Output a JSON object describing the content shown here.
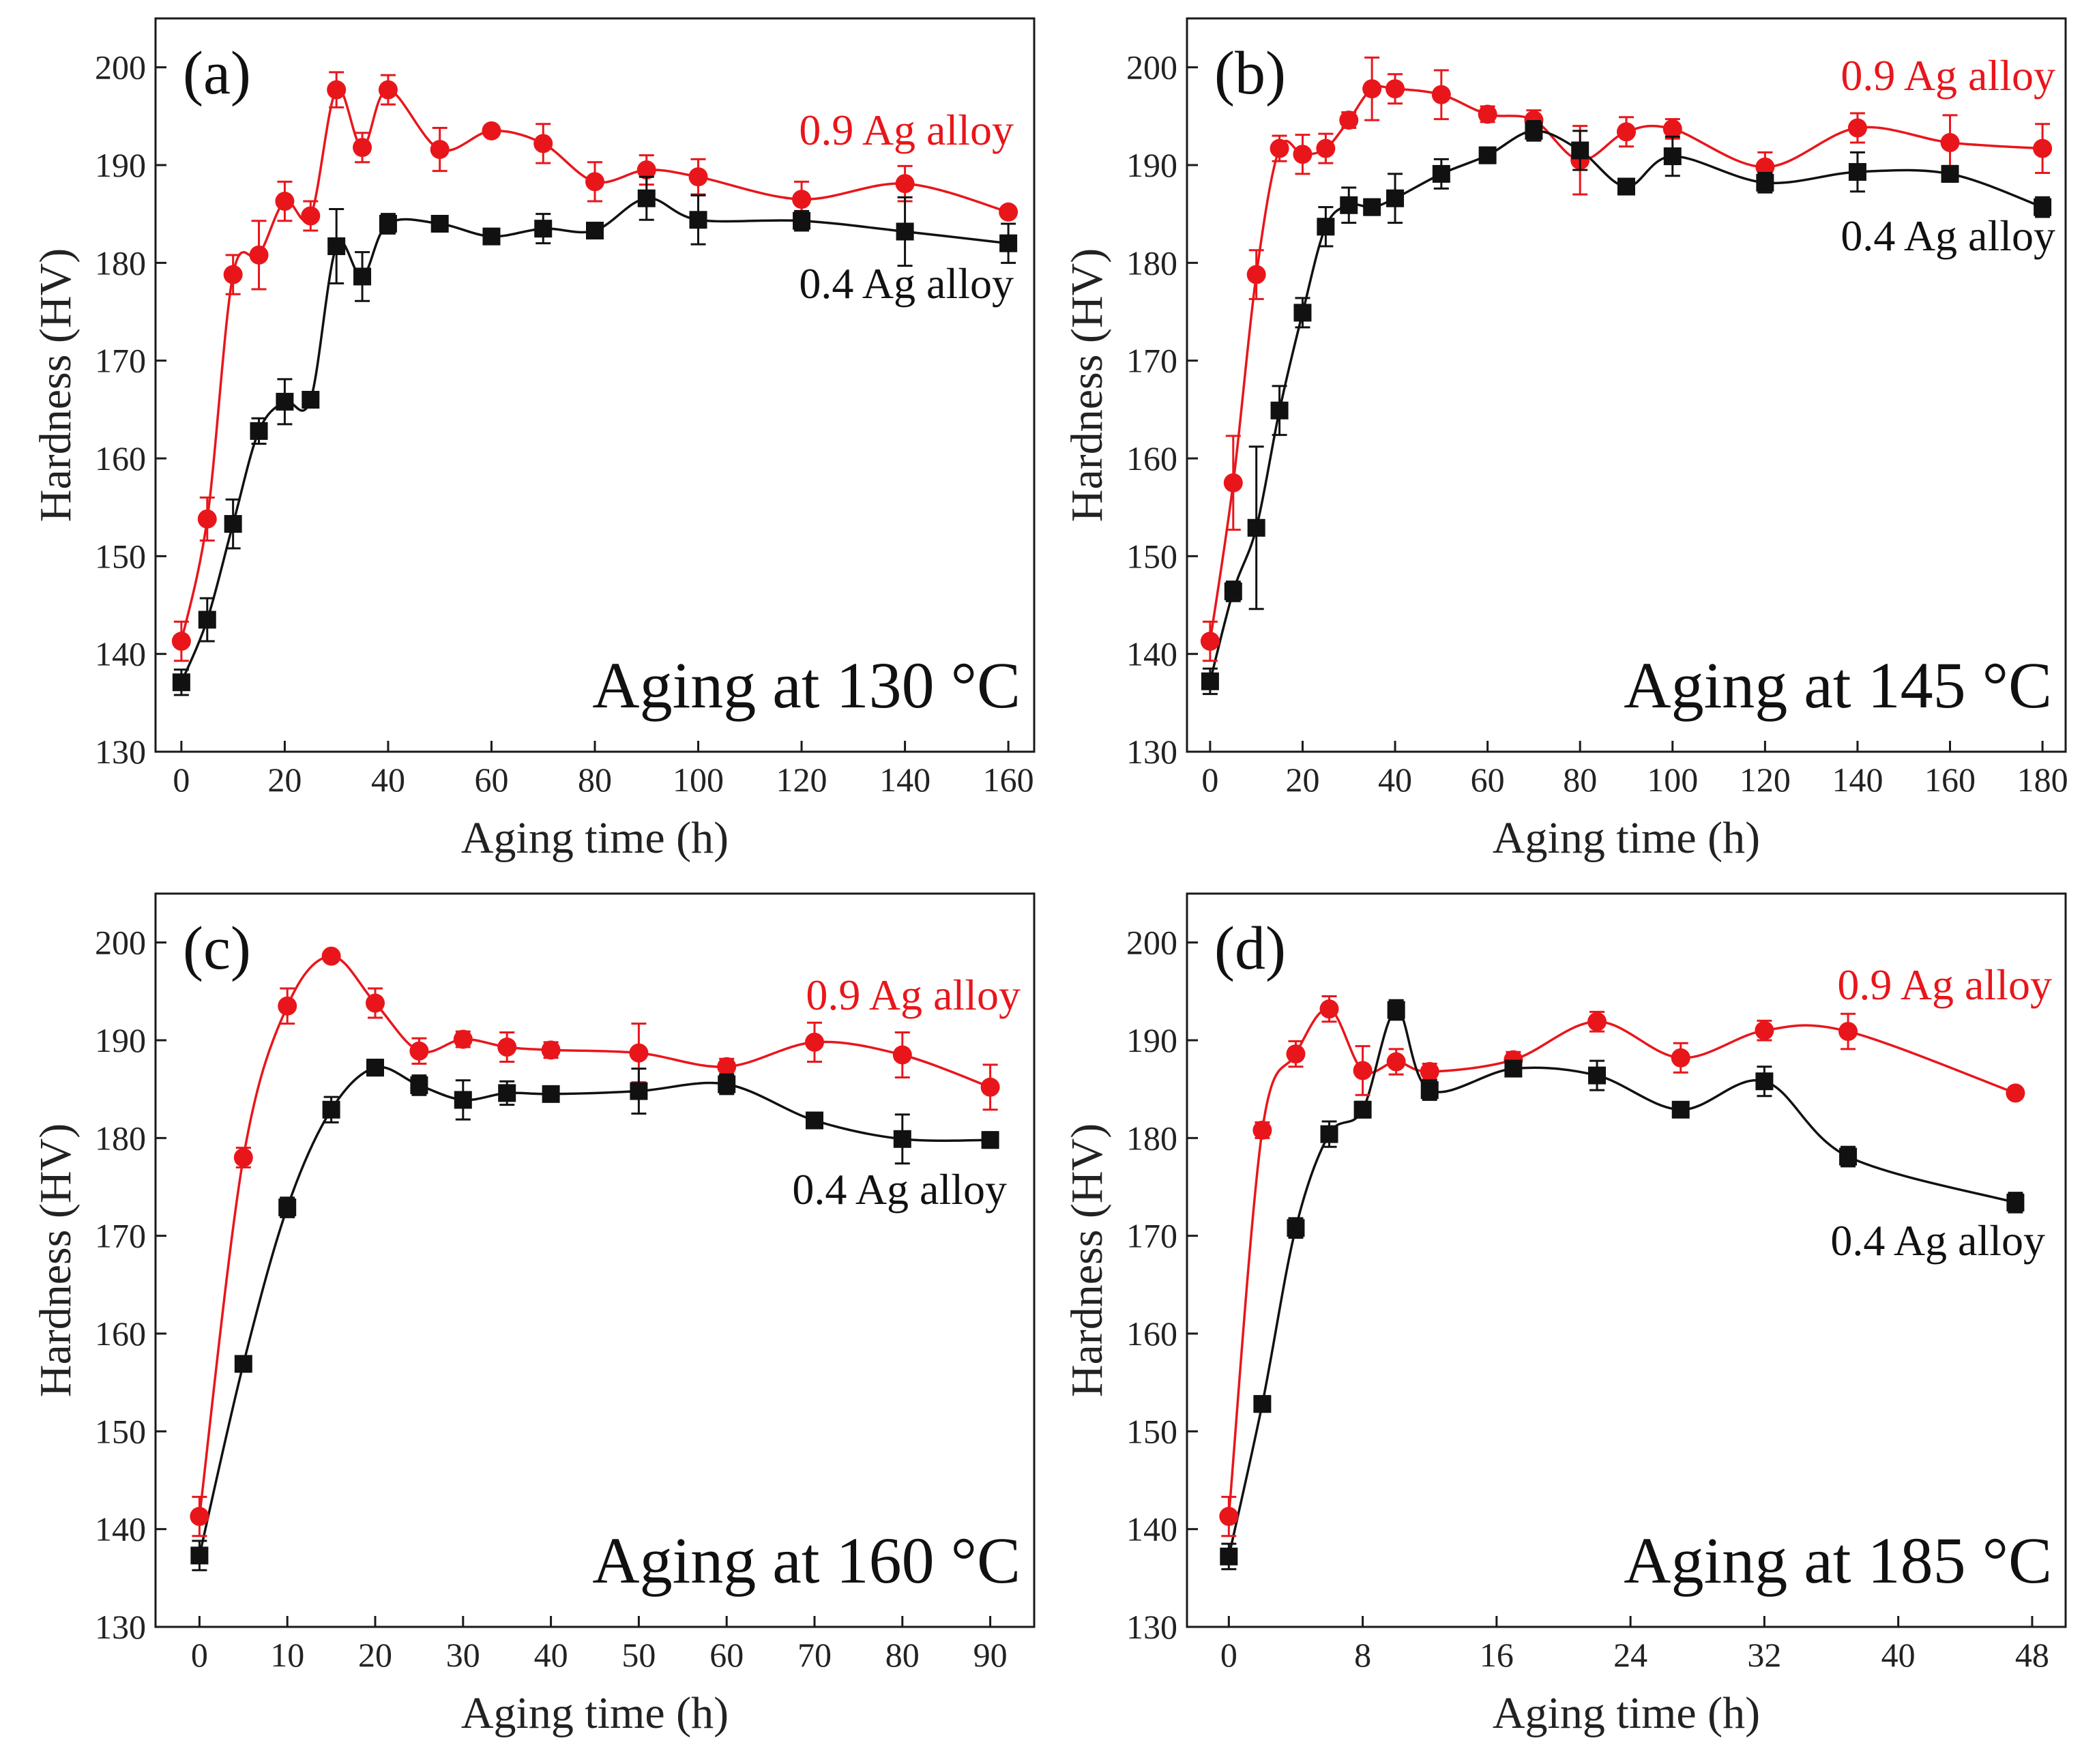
{
  "chart_data": [
    {
      "type": "line",
      "panel_label": "(a)",
      "condition": "Aging at 130 °C",
      "xlabel": "Aging time (h)",
      "ylabel": "Hardness (HV)",
      "xlim": [
        -5,
        165
      ],
      "ylim": [
        130,
        205
      ],
      "xticks": [
        0,
        20,
        40,
        60,
        80,
        100,
        120,
        140,
        160
      ],
      "yticks": [
        130,
        140,
        150,
        160,
        170,
        180,
        190,
        200
      ],
      "series": [
        {
          "name": "0.9 Ag alloy",
          "color": "#e8161b",
          "marker": "circle",
          "x": [
            0,
            5,
            10,
            15,
            20,
            25,
            30,
            35,
            40,
            50,
            60,
            70,
            80,
            90,
            100,
            120,
            140,
            160
          ],
          "y": [
            141.3,
            153.8,
            178.8,
            180.8,
            186.3,
            184.8,
            197.7,
            191.8,
            197.7,
            191.6,
            193.5,
            192.2,
            188.3,
            189.5,
            188.8,
            186.5,
            188.1,
            185.2
          ],
          "err": [
            2.0,
            2.2,
            2.0,
            3.5,
            2.0,
            1.5,
            1.8,
            1.5,
            1.5,
            2.2,
            0.5,
            2.0,
            2.0,
            1.5,
            1.8,
            1.8,
            1.8,
            0.5
          ]
        },
        {
          "name": "0.4 Ag alloy",
          "color": "#111111",
          "marker": "square",
          "x": [
            0,
            5,
            10,
            15,
            20,
            25,
            30,
            35,
            40,
            50,
            60,
            70,
            80,
            90,
            100,
            120,
            140,
            160
          ],
          "y": [
            137.1,
            143.5,
            153.3,
            162.8,
            165.8,
            166.0,
            181.7,
            178.6,
            184.0,
            184.0,
            182.7,
            183.5,
            183.3,
            186.6,
            184.4,
            184.3,
            183.2,
            182.0
          ],
          "err": [
            1.3,
            2.2,
            2.5,
            1.3,
            2.3,
            0.8,
            3.8,
            2.5,
            1.0,
            0.5,
            0.5,
            1.5,
            0.5,
            2.2,
            2.5,
            1.0,
            3.5,
            2.0
          ]
        }
      ],
      "series_label_layout": [
        {
          "x": 1.6,
          "y": 0.17,
          "anchor": "end"
        },
        {
          "x": 1.6,
          "y": 0.4,
          "anchor": "end"
        }
      ]
    },
    {
      "type": "line",
      "panel_label": "(b)",
      "condition": "Aging at 145 °C",
      "xlabel": "Aging time (h)",
      "ylabel": "Hardness (HV)",
      "xlim": [
        -5,
        185
      ],
      "ylim": [
        130,
        205
      ],
      "xticks": [
        0,
        20,
        40,
        60,
        80,
        100,
        120,
        140,
        160,
        180
      ],
      "yticks": [
        130,
        140,
        150,
        160,
        170,
        180,
        190,
        200
      ],
      "series": [
        {
          "name": "0.9 Ag alloy",
          "color": "#e8161b",
          "marker": "circle",
          "x": [
            0,
            5,
            10,
            15,
            20,
            25,
            30,
            35,
            40,
            50,
            60,
            70,
            80,
            90,
            100,
            120,
            140,
            160,
            180
          ],
          "y": [
            141.3,
            157.5,
            178.8,
            191.7,
            191.1,
            191.7,
            194.6,
            197.8,
            197.8,
            197.2,
            195.2,
            194.6,
            190.5,
            193.4,
            193.7,
            189.8,
            193.8,
            192.3,
            191.7
          ],
          "err": [
            2.0,
            4.8,
            2.5,
            1.3,
            2.0,
            1.5,
            0.8,
            3.2,
            1.5,
            2.5,
            0.8,
            1.0,
            3.5,
            1.5,
            1.0,
            1.5,
            1.5,
            2.8,
            2.5
          ]
        },
        {
          "name": "0.4 Ag alloy",
          "color": "#111111",
          "marker": "square",
          "x": [
            0,
            5,
            10,
            15,
            20,
            25,
            30,
            35,
            40,
            50,
            60,
            70,
            80,
            90,
            100,
            120,
            140,
            160,
            180
          ],
          "y": [
            137.2,
            146.4,
            152.9,
            164.9,
            174.9,
            183.7,
            185.9,
            185.7,
            186.6,
            189.1,
            191.0,
            193.5,
            191.5,
            187.8,
            190.9,
            188.2,
            189.3,
            189.1,
            185.7
          ],
          "err": [
            1.3,
            1.0,
            8.3,
            2.5,
            1.5,
            2.0,
            1.8,
            0.8,
            2.5,
            1.5,
            0.8,
            1.0,
            2.0,
            0.8,
            2.0,
            1.0,
            2.0,
            0.8,
            1.0
          ]
        }
      ],
      "series_label_layout": [
        {
          "x": 1.6,
          "y": 0.17,
          "anchor": "end"
        },
        {
          "x": 1.6,
          "y": 0.4,
          "anchor": "end"
        }
      ]
    },
    {
      "type": "line",
      "panel_label": "(c)",
      "condition": "Aging at 160 °C",
      "xlabel": "Aging time (h)",
      "ylabel": "Hardness (HV)",
      "xlim": [
        -5,
        95
      ],
      "ylim": [
        130,
        205
      ],
      "xticks": [
        0,
        10,
        20,
        30,
        40,
        50,
        60,
        70,
        80,
        90
      ],
      "yticks": [
        130,
        140,
        150,
        160,
        170,
        180,
        190,
        200
      ],
      "series": [
        {
          "name": "0.9 Ag alloy",
          "color": "#e8161b",
          "marker": "circle",
          "x": [
            0,
            5,
            10,
            15,
            20,
            25,
            30,
            35,
            40,
            50,
            60,
            70,
            80,
            90
          ],
          "y": [
            141.3,
            178.0,
            193.5,
            198.6,
            193.8,
            188.9,
            190.1,
            189.3,
            189.0,
            188.7,
            187.3,
            189.8,
            188.5,
            185.2
          ],
          "err": [
            2.0,
            1.0,
            1.8,
            0.5,
            1.5,
            1.3,
            0.8,
            1.5,
            0.8,
            3.0,
            0.8,
            2.0,
            2.3,
            2.3
          ]
        },
        {
          "name": "0.4 Ag alloy",
          "color": "#111111",
          "marker": "square",
          "x": [
            0,
            5,
            10,
            15,
            20,
            25,
            30,
            35,
            40,
            50,
            60,
            70,
            80,
            90
          ],
          "y": [
            137.3,
            156.9,
            172.9,
            182.9,
            187.2,
            185.4,
            183.9,
            184.6,
            184.5,
            184.8,
            185.5,
            181.8,
            179.9,
            179.8
          ],
          "err": [
            1.5,
            0.5,
            1.0,
            1.3,
            0.8,
            1.0,
            2.0,
            1.2,
            0.5,
            2.3,
            1.0,
            0.5,
            2.5,
            0.8
          ]
        }
      ],
      "series_label_layout": [
        {
          "x": 1.8,
          "y": 0.18,
          "anchor": "end"
        },
        {
          "x": 1.8,
          "y": 0.42,
          "anchor": "end"
        }
      ]
    },
    {
      "type": "line",
      "panel_label": "(d)",
      "condition": "Aging at 185 °C",
      "xlabel": "Aging time (h)",
      "ylabel": "Hardness (HV)",
      "xlim": [
        -2.5,
        50
      ],
      "ylim": [
        130,
        205
      ],
      "xticks": [
        0,
        8,
        16,
        24,
        32,
        40,
        48
      ],
      "yticks": [
        130,
        140,
        150,
        160,
        170,
        180,
        190,
        200
      ],
      "series": [
        {
          "name": "0.9 Ag alloy",
          "color": "#e8161b",
          "marker": "circle",
          "x": [
            0,
            2,
            4,
            6,
            8,
            10,
            12,
            17,
            22,
            27,
            32,
            37,
            47
          ],
          "y": [
            141.3,
            180.8,
            188.6,
            193.2,
            186.9,
            187.8,
            186.8,
            188.0,
            191.9,
            188.2,
            191.0,
            190.9,
            184.6
          ],
          "err": [
            2.0,
            0.8,
            1.3,
            1.3,
            2.5,
            1.3,
            0.8,
            0.8,
            1.0,
            1.5,
            1.0,
            1.8,
            0.5
          ]
        },
        {
          "name": "0.4 Ag alloy",
          "color": "#111111",
          "marker": "square",
          "x": [
            0,
            2,
            4,
            6,
            8,
            10,
            12,
            17,
            22,
            27,
            32,
            37,
            47
          ],
          "y": [
            137.2,
            152.8,
            170.8,
            180.4,
            182.9,
            193.1,
            184.9,
            187.1,
            186.4,
            182.9,
            185.8,
            178.1,
            173.4
          ],
          "err": [
            1.3,
            0.8,
            1.0,
            1.3,
            0.8,
            1.0,
            1.0,
            0.5,
            1.5,
            0.5,
            1.5,
            1.0,
            1.0
          ]
        }
      ],
      "series_label_layout": [
        {
          "x": 1.6,
          "y": 0.16,
          "anchor": "end"
        },
        {
          "x": 1.6,
          "y": 0.47,
          "anchor": "end"
        }
      ]
    }
  ]
}
